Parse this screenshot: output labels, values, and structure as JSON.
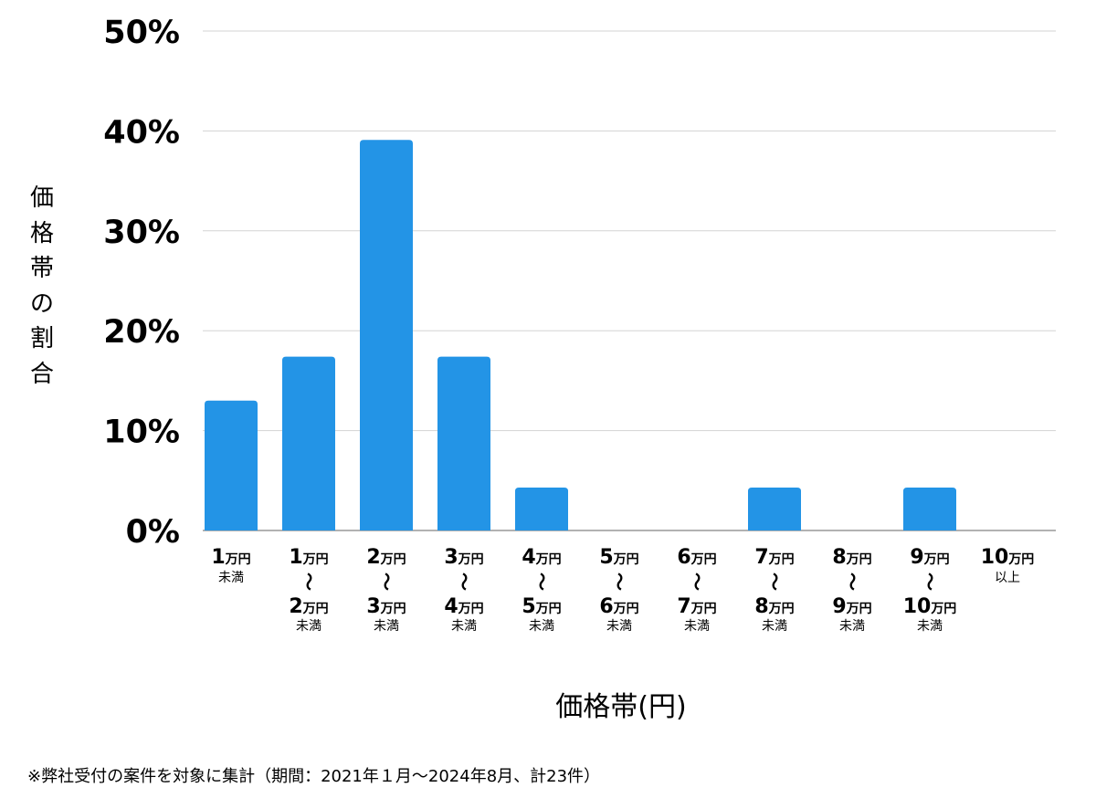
{
  "chart_data": {
    "type": "bar",
    "categories": [
      {
        "top": "1",
        "top_unit": "万円",
        "mid": "",
        "bottom": "",
        "bottom_unit": "",
        "note": "未満"
      },
      {
        "top": "1",
        "top_unit": "万円",
        "mid": "〜",
        "bottom": "2",
        "bottom_unit": "万円",
        "note": "未満"
      },
      {
        "top": "2",
        "top_unit": "万円",
        "mid": "〜",
        "bottom": "3",
        "bottom_unit": "万円",
        "note": "未満"
      },
      {
        "top": "3",
        "top_unit": "万円",
        "mid": "〜",
        "bottom": "4",
        "bottom_unit": "万円",
        "note": "未満"
      },
      {
        "top": "4",
        "top_unit": "万円",
        "mid": "〜",
        "bottom": "5",
        "bottom_unit": "万円",
        "note": "未満"
      },
      {
        "top": "5",
        "top_unit": "万円",
        "mid": "〜",
        "bottom": "6",
        "bottom_unit": "万円",
        "note": "未満"
      },
      {
        "top": "6",
        "top_unit": "万円",
        "mid": "〜",
        "bottom": "7",
        "bottom_unit": "万円",
        "note": "未満"
      },
      {
        "top": "7",
        "top_unit": "万円",
        "mid": "〜",
        "bottom": "8",
        "bottom_unit": "万円",
        "note": "未満"
      },
      {
        "top": "8",
        "top_unit": "万円",
        "mid": "〜",
        "bottom": "9",
        "bottom_unit": "万円",
        "note": "未満"
      },
      {
        "top": "9",
        "top_unit": "万円",
        "mid": "〜",
        "bottom": "10",
        "bottom_unit": "万円",
        "note": "未満"
      },
      {
        "top": "10",
        "top_unit": "万円",
        "mid": "",
        "bottom": "",
        "bottom_unit": "",
        "note": "以上"
      }
    ],
    "values": [
      13.0,
      17.4,
      39.1,
      17.4,
      4.3,
      0,
      0,
      4.3,
      0,
      4.3,
      0
    ],
    "yticks": [
      "0%",
      "10%",
      "20%",
      "30%",
      "40%",
      "50%"
    ],
    "ylim": [
      0,
      50
    ],
    "ylabel": "価格帯の割合",
    "xlabel": "価格帯(円)",
    "grid": true,
    "legend": "none",
    "bar_color": "#2394e6",
    "grid_color": "#d3d3d3",
    "axis_color": "#999999"
  },
  "footnote": "※弊社受付の案件を対象に集計（期間：2021年１月〜2024年8月、計23件）"
}
